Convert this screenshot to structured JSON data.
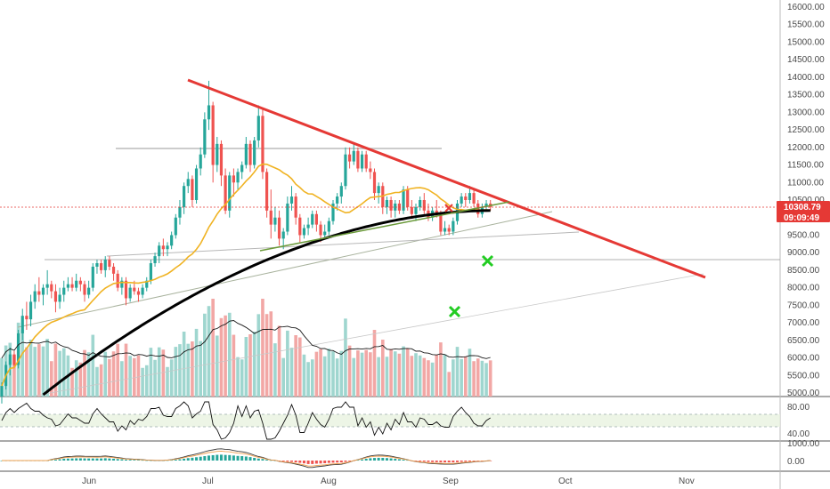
{
  "chart_data": {
    "type": "candlestick",
    "price_axis": {
      "ticks": [
        "16000.00",
        "15500.00",
        "15000.00",
        "14500.00",
        "14000.00",
        "13500.00",
        "13000.00",
        "12500.00",
        "12000.00",
        "11500.00",
        "11000.00",
        "10500.00",
        "10000.00",
        "9500.00",
        "9000.00",
        "8500.00",
        "8000.00",
        "7500.00",
        "7000.00",
        "6500.00",
        "6000.00",
        "5500.00",
        "5000.00"
      ],
      "range": [
        5000,
        16000
      ]
    },
    "time_axis": {
      "labels": [
        "Jun",
        "Jul",
        "Aug",
        "Sep",
        "Oct",
        "Nov"
      ]
    },
    "last_price": {
      "value": "10308.79",
      "countdown": "09:09:49",
      "color": "#e53935"
    },
    "rsi_panel": {
      "ticks": [
        "80.00",
        "40.00"
      ],
      "band": [
        40,
        70
      ]
    },
    "macd_panel": {
      "ticks": [
        "1000.00",
        "0.00"
      ]
    },
    "colors": {
      "up": "#26a69a",
      "down": "#ef5350",
      "trend_red": "#e53935",
      "ma_slow": "#000000",
      "ma_fast": "#f0b323",
      "support_green": "#6b9a3a",
      "marker_green": "#22cc22"
    },
    "candles": [
      [
        4900,
        5300,
        4700,
        5200
      ],
      [
        5200,
        5900,
        5100,
        5800
      ],
      [
        5800,
        6300,
        5500,
        6100
      ],
      [
        6100,
        6200,
        5700,
        5800
      ],
      [
        5800,
        6800,
        5700,
        6700
      ],
      [
        6700,
        7400,
        6500,
        7200
      ],
      [
        7200,
        7600,
        6800,
        7100
      ],
      [
        7100,
        7800,
        6900,
        7600
      ],
      [
        7600,
        8100,
        7400,
        7900
      ],
      [
        7900,
        8300,
        7600,
        7800
      ],
      [
        7800,
        8100,
        7500,
        8000
      ],
      [
        8000,
        8500,
        7800,
        8100
      ],
      [
        8100,
        8200,
        7700,
        7900
      ],
      [
        7900,
        8100,
        7300,
        7600
      ],
      [
        7600,
        8000,
        7400,
        7800
      ],
      [
        7800,
        8200,
        7600,
        8000
      ],
      [
        8000,
        8300,
        7900,
        8100
      ],
      [
        8100,
        8300,
        7900,
        8000
      ],
      [
        8000,
        8400,
        7900,
        8200
      ],
      [
        8200,
        8300,
        7900,
        8100
      ],
      [
        8100,
        8200,
        7600,
        7800
      ],
      [
        7800,
        8200,
        7700,
        8000
      ],
      [
        8000,
        8700,
        7900,
        8600
      ],
      [
        8600,
        8800,
        8400,
        8700
      ],
      [
        8700,
        8800,
        8400,
        8500
      ],
      [
        8500,
        8900,
        8300,
        8800
      ],
      [
        8800,
        8900,
        8500,
        8600
      ],
      [
        8600,
        8700,
        8200,
        8400
      ],
      [
        8400,
        8500,
        7900,
        8000
      ],
      [
        8000,
        8300,
        7800,
        8200
      ],
      [
        8200,
        8300,
        7500,
        7700
      ],
      [
        7700,
        8100,
        7600,
        8000
      ],
      [
        8000,
        8200,
        7800,
        7900
      ],
      [
        7900,
        8000,
        7600,
        7800
      ],
      [
        7800,
        8100,
        7700,
        8000
      ],
      [
        8000,
        8300,
        7900,
        8200
      ],
      [
        8200,
        8800,
        8100,
        8700
      ],
      [
        8700,
        9000,
        8600,
        8900
      ],
      [
        8900,
        9300,
        8700,
        9200
      ],
      [
        9200,
        9400,
        8900,
        9100
      ],
      [
        9100,
        9300,
        8900,
        9200
      ],
      [
        9200,
        9600,
        9100,
        9500
      ],
      [
        9500,
        10100,
        9400,
        10000
      ],
      [
        10000,
        10500,
        9800,
        10300
      ],
      [
        10300,
        11000,
        10100,
        10900
      ],
      [
        10900,
        11300,
        10700,
        11100
      ],
      [
        11100,
        11200,
        10300,
        10500
      ],
      [
        10500,
        11500,
        10400,
        11400
      ],
      [
        11400,
        12000,
        11200,
        11800
      ],
      [
        11800,
        13000,
        11700,
        12800
      ],
      [
        12800,
        13900,
        12500,
        13200
      ],
      [
        13200,
        13300,
        11000,
        11500
      ],
      [
        11500,
        12300,
        11300,
        12100
      ],
      [
        12100,
        12200,
        10900,
        11200
      ],
      [
        11200,
        11400,
        10100,
        10200
      ],
      [
        10200,
        11300,
        10000,
        11200
      ],
      [
        11200,
        11400,
        10600,
        11000
      ],
      [
        11000,
        11400,
        10800,
        11300
      ],
      [
        11300,
        11600,
        11100,
        11500
      ],
      [
        11500,
        12300,
        11400,
        12100
      ],
      [
        12100,
        12200,
        11300,
        11500
      ],
      [
        11500,
        12300,
        11400,
        12200
      ],
      [
        12200,
        13200,
        12000,
        12900
      ],
      [
        12900,
        13100,
        11100,
        11300
      ],
      [
        11300,
        11400,
        10000,
        10200
      ],
      [
        10200,
        10800,
        9400,
        9800
      ],
      [
        9800,
        10300,
        9600,
        10000
      ],
      [
        10000,
        10200,
        9200,
        9400
      ],
      [
        9400,
        9700,
        9100,
        9600
      ],
      [
        9600,
        10600,
        9500,
        10400
      ],
      [
        10400,
        10900,
        10200,
        10600
      ],
      [
        10600,
        10700,
        9800,
        10000
      ],
      [
        10000,
        10100,
        9300,
        9500
      ],
      [
        9500,
        9800,
        9400,
        9700
      ],
      [
        9700,
        10000,
        9500,
        9800
      ],
      [
        9800,
        10200,
        9700,
        10100
      ],
      [
        10100,
        10200,
        9600,
        9800
      ],
      [
        9800,
        9900,
        9300,
        9500
      ],
      [
        9500,
        9800,
        9400,
        9600
      ],
      [
        9600,
        10000,
        9500,
        9900
      ],
      [
        9900,
        10500,
        9800,
        10400
      ],
      [
        10400,
        10700,
        10200,
        10600
      ],
      [
        10600,
        11000,
        10400,
        10900
      ],
      [
        10900,
        12000,
        10800,
        11800
      ],
      [
        11800,
        12000,
        11400,
        11600
      ],
      [
        11600,
        12100,
        11500,
        11900
      ],
      [
        11900,
        12000,
        11300,
        11400
      ],
      [
        11400,
        11900,
        11300,
        11800
      ],
      [
        11800,
        11900,
        11300,
        11400
      ],
      [
        11400,
        11600,
        11100,
        11300
      ],
      [
        11300,
        11400,
        10500,
        10700
      ],
      [
        10700,
        11000,
        10400,
        10900
      ],
      [
        10900,
        11000,
        10100,
        10300
      ],
      [
        10300,
        10600,
        10100,
        10500
      ],
      [
        10500,
        10600,
        10000,
        10200
      ],
      [
        10200,
        10500,
        10000,
        10400
      ],
      [
        10400,
        10500,
        10100,
        10200
      ],
      [
        10200,
        10900,
        10100,
        10800
      ],
      [
        10800,
        10900,
        10200,
        10300
      ],
      [
        10300,
        10500,
        10000,
        10100
      ],
      [
        10100,
        10400,
        9900,
        10300
      ],
      [
        10300,
        10600,
        10200,
        10500
      ],
      [
        10500,
        10700,
        10100,
        10200
      ],
      [
        10200,
        10400,
        9900,
        10000
      ],
      [
        10000,
        10300,
        9900,
        10200
      ],
      [
        10200,
        10500,
        10000,
        10100
      ],
      [
        10100,
        10200,
        9500,
        9600
      ],
      [
        9600,
        9900,
        9500,
        9700
      ],
      [
        9700,
        9800,
        9500,
        9600
      ],
      [
        9600,
        10000,
        9500,
        9900
      ],
      [
        9900,
        10500,
        9800,
        10400
      ],
      [
        10400,
        10700,
        10300,
        10600
      ],
      [
        10600,
        10700,
        10300,
        10500
      ],
      [
        10500,
        10900,
        10400,
        10700
      ],
      [
        10700,
        10800,
        10300,
        10400
      ],
      [
        10400,
        10500,
        10000,
        10100
      ],
      [
        10100,
        10400,
        10000,
        10300
      ],
      [
        10300,
        10500,
        10200,
        10400
      ],
      [
        10400,
        10500,
        10200,
        10300
      ]
    ]
  }
}
